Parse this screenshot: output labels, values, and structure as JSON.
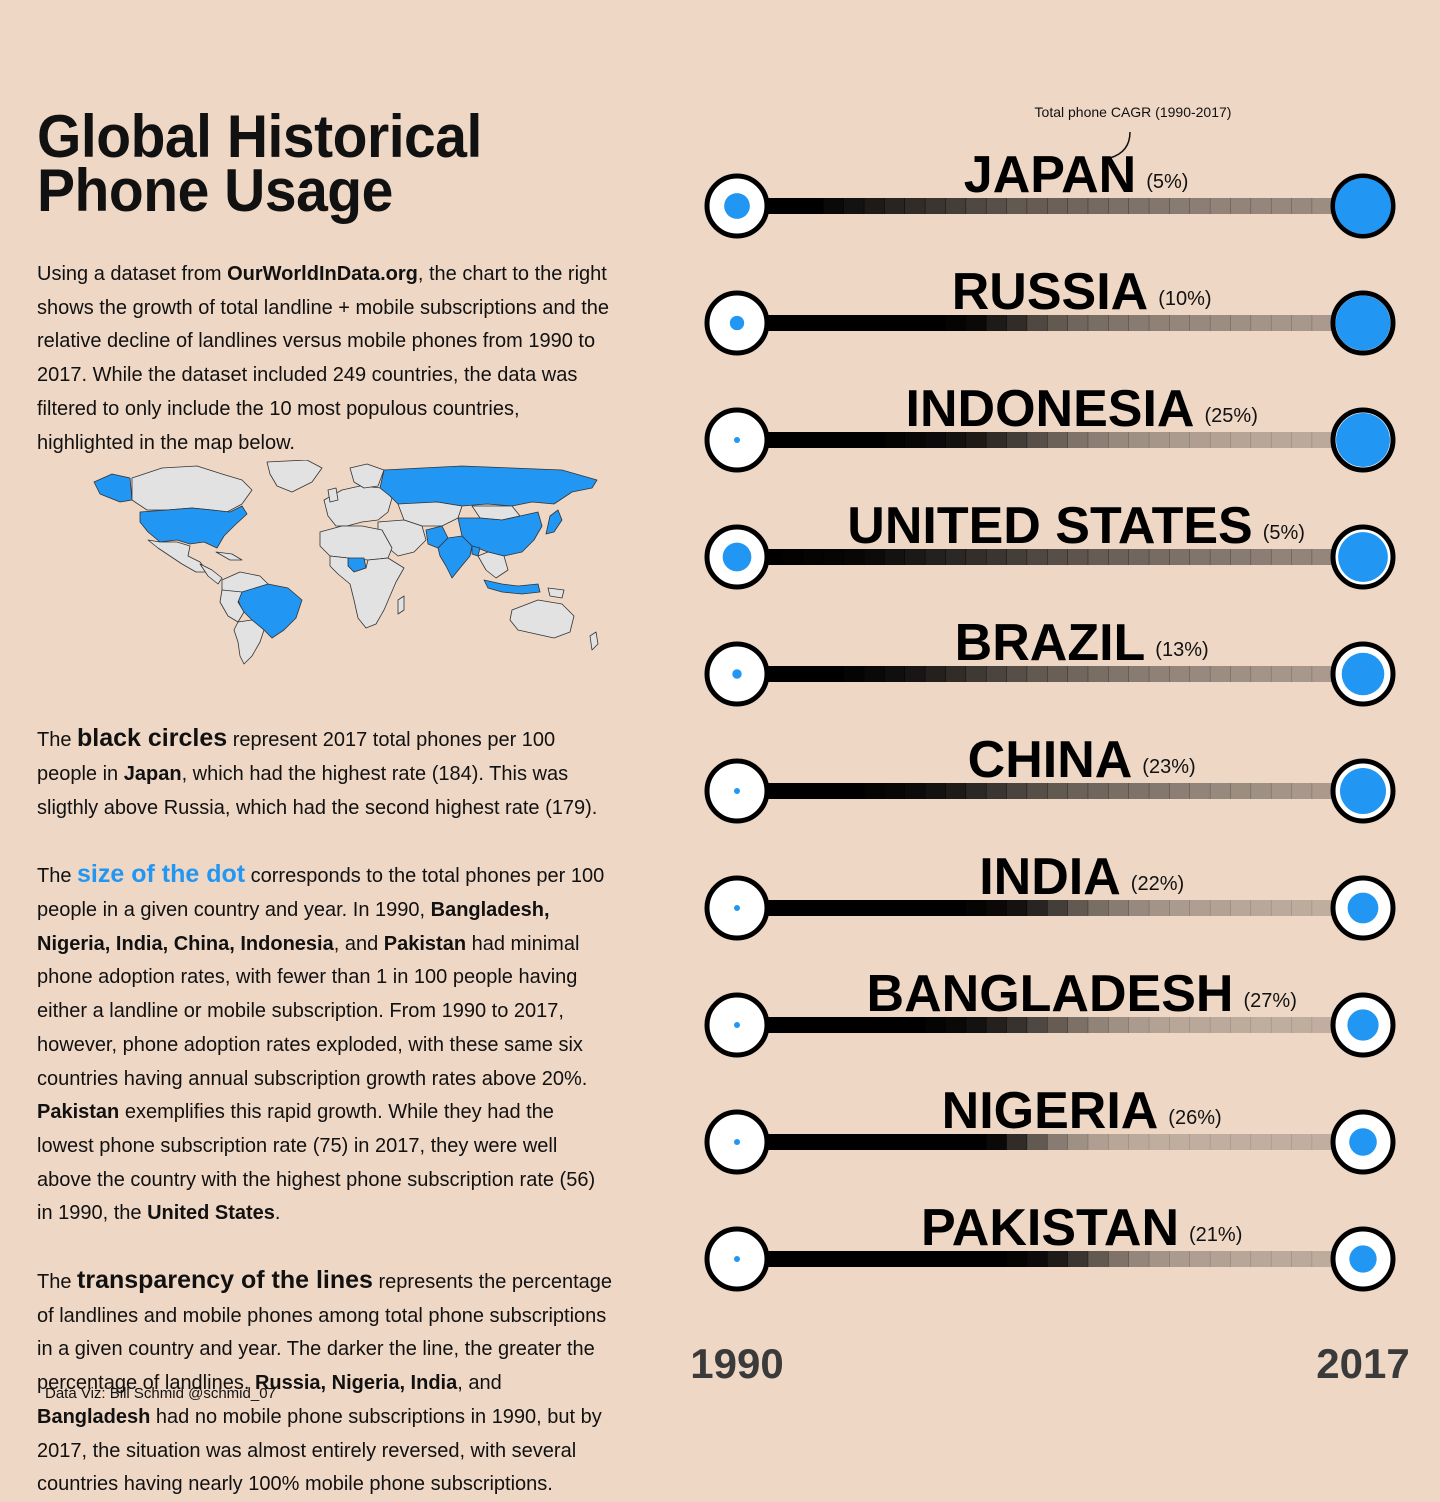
{
  "title": "Global Historical Phone Usage",
  "intro": {
    "p1": "Using a dataset from ",
    "source": "OurWorldInData.org",
    "p2": ", the chart to the right shows the growth of total landline + mobile subscriptions and the relative decline of landlines versus mobile phones from 1990 to 2017. While the dataset included 249 countries, the data was filtered to only include the 10 most populous countries, highlighted in the map below."
  },
  "black_circles": {
    "t1": "The ",
    "hl": "black circles",
    "t2": " represent 2017 total phones per 100 people in ",
    "b1": "Japan",
    "t3": ", which had the highest rate (184). This was sligthly above Russia, which had the second highest rate (179)."
  },
  "dot_size": {
    "t1": "The ",
    "hl": "size of the dot",
    "t2": " corresponds to the total phones per 100 people in a given country and year. In 1990, ",
    "b1": "Bangladesh, Nigeria, India, China, Indonesia",
    "t3": ", and ",
    "b2": "Pakistan",
    "t4": " had minimal phone adoption rates, with fewer than 1 in 100 people having either a landline or mobile subscription. From 1990 to 2017, however, phone adoption rates exploded, with these same six countries having annual subscription growth rates above 20%. ",
    "b3": "Pakistan",
    "t5": " exemplifies this rapid growth. While they had the lowest phone subscription rate (75) in 2017, they were well above the country with the highest phone subscription rate (56) in 1990, the ",
    "b4": "United States",
    "t6": "."
  },
  "transparency": {
    "t1": "The ",
    "hl": "transparency of the lines",
    "t2": " represents the percentage of landlines and mobile phones among total phone subscriptions in a given country and year. The darker the line, the greater the percentage of landlines. ",
    "b1": "Russia, Nigeria, India",
    "t3": ", and ",
    "b2": "Bangladesh",
    "t4": " had no mobile phone subscriptions in 1990, but by 2017, the situation was almost entirely reversed, with several countries having nearly 100% mobile phone subscriptions."
  },
  "credit": "Data Viz: Bill Schmid @schmid_07",
  "colors": {
    "background": "#eed7c5",
    "accent": "#2196f3",
    "ink": "#111111",
    "axis_year": "#3a3a3a"
  },
  "map": {
    "highlighted_countries": [
      "United States",
      "Brazil",
      "Russia",
      "China",
      "India",
      "Indonesia",
      "Pakistan",
      "Bangladesh",
      "Nigeria",
      "Japan"
    ]
  },
  "chart_data": {
    "type": "dumbbell",
    "annotation": "Total phone CAGR (1990-2017)",
    "x_start_label": "1990",
    "x_end_label": "2017",
    "countries": [
      {
        "name": "JAPAN",
        "cagr": "(5%)",
        "phones_1990": 45,
        "phones_2017": 184,
        "landline_share": [
          1,
          1,
          1,
          0.95,
          0.9,
          0.85,
          0.8,
          0.75,
          0.7,
          0.65,
          0.6,
          0.55,
          0.5,
          0.48,
          0.45,
          0.42,
          0.4,
          0.37,
          0.35,
          0.33,
          0.3,
          0.28,
          0.26,
          0.25,
          0.24,
          0.23,
          0.22,
          0.2
        ]
      },
      {
        "name": "RUSSIA",
        "cagr": "(10%)",
        "phones_1990": 14,
        "phones_2017": 179,
        "landline_share": [
          1,
          1,
          1,
          1,
          1,
          1,
          1,
          1,
          1,
          0.98,
          0.95,
          0.85,
          0.75,
          0.6,
          0.5,
          0.42,
          0.38,
          0.34,
          0.3,
          0.27,
          0.24,
          0.22,
          0.2,
          0.18,
          0.16,
          0.15,
          0.14,
          0.13
        ]
      },
      {
        "name": "INDONESIA",
        "cagr": "(25%)",
        "phones_1990": 0.6,
        "phones_2017": 176,
        "landline_share": [
          1,
          1,
          1,
          1,
          1,
          1,
          0.98,
          0.96,
          0.94,
          0.9,
          0.85,
          0.75,
          0.65,
          0.55,
          0.45,
          0.35,
          0.28,
          0.22,
          0.18,
          0.15,
          0.12,
          0.1,
          0.08,
          0.07,
          0.06,
          0.05,
          0.04,
          0.04
        ]
      },
      {
        "name": "UNITED STATES",
        "cagr": "(5%)",
        "phones_1990": 56,
        "phones_2017": 160,
        "landline_share": [
          1,
          0.99,
          0.98,
          0.97,
          0.96,
          0.94,
          0.9,
          0.86,
          0.82,
          0.78,
          0.74,
          0.7,
          0.65,
          0.6,
          0.56,
          0.52,
          0.48,
          0.45,
          0.42,
          0.39,
          0.36,
          0.34,
          0.32,
          0.3,
          0.28,
          0.26,
          0.25,
          0.24
        ]
      },
      {
        "name": "BRAZIL",
        "cagr": "(13%)",
        "phones_1990": 6,
        "phones_2017": 133,
        "landline_share": [
          1,
          1,
          1,
          1,
          0.98,
          0.95,
          0.92,
          0.88,
          0.82,
          0.75,
          0.68,
          0.62,
          0.56,
          0.5,
          0.46,
          0.42,
          0.38,
          0.34,
          0.3,
          0.27,
          0.24,
          0.22,
          0.2,
          0.18,
          0.16,
          0.15,
          0.14,
          0.13
        ]
      },
      {
        "name": "CHINA",
        "cagr": "(23%)",
        "phones_1990": 0.6,
        "phones_2017": 146,
        "landline_share": [
          1,
          1,
          1,
          1,
          1,
          0.98,
          0.96,
          0.94,
          0.9,
          0.85,
          0.78,
          0.7,
          0.62,
          0.56,
          0.5,
          0.45,
          0.42,
          0.38,
          0.35,
          0.32,
          0.28,
          0.25,
          0.22,
          0.2,
          0.18,
          0.16,
          0.14,
          0.13
        ]
      },
      {
        "name": "INDIA",
        "cagr": "(22%)",
        "phones_1990": 0.6,
        "phones_2017": 88,
        "landline_share": [
          1,
          1,
          1,
          1,
          1,
          1,
          1,
          1,
          1,
          1,
          0.98,
          0.95,
          0.9,
          0.8,
          0.65,
          0.5,
          0.38,
          0.3,
          0.22,
          0.16,
          0.12,
          0.1,
          0.08,
          0.06,
          0.05,
          0.04,
          0.03,
          0.02
        ]
      },
      {
        "name": "BANGLADESH",
        "cagr": "(27%)",
        "phones_1990": 0.2,
        "phones_2017": 90,
        "landline_share": [
          1,
          1,
          1,
          1,
          1,
          1,
          1,
          1,
          0.98,
          0.95,
          0.9,
          0.82,
          0.72,
          0.6,
          0.48,
          0.36,
          0.26,
          0.18,
          0.12,
          0.08,
          0.06,
          0.05,
          0.04,
          0.03,
          0.02,
          0.02,
          0.02,
          0.01
        ]
      },
      {
        "name": "NIGERIA",
        "cagr": "(26%)",
        "phones_1990": 0.3,
        "phones_2017": 76,
        "landline_share": [
          1,
          1,
          1,
          1,
          1,
          1,
          1,
          1,
          1,
          1,
          1,
          0.95,
          0.75,
          0.5,
          0.3,
          0.18,
          0.1,
          0.06,
          0.04,
          0.02,
          0.02,
          0.01,
          0.01,
          0.01,
          0.01,
          0.01,
          0.01,
          0.01
        ]
      },
      {
        "name": "PAKISTAN",
        "cagr": "(21%)",
        "phones_1990": 0.7,
        "phones_2017": 75,
        "landline_share": [
          1,
          1,
          1,
          1,
          1,
          1,
          1,
          1,
          1,
          1,
          1,
          1,
          0.98,
          0.94,
          0.85,
          0.7,
          0.5,
          0.35,
          0.24,
          0.16,
          0.12,
          0.1,
          0.08,
          0.06,
          0.05,
          0.04,
          0.04,
          0.03
        ]
      }
    ]
  }
}
